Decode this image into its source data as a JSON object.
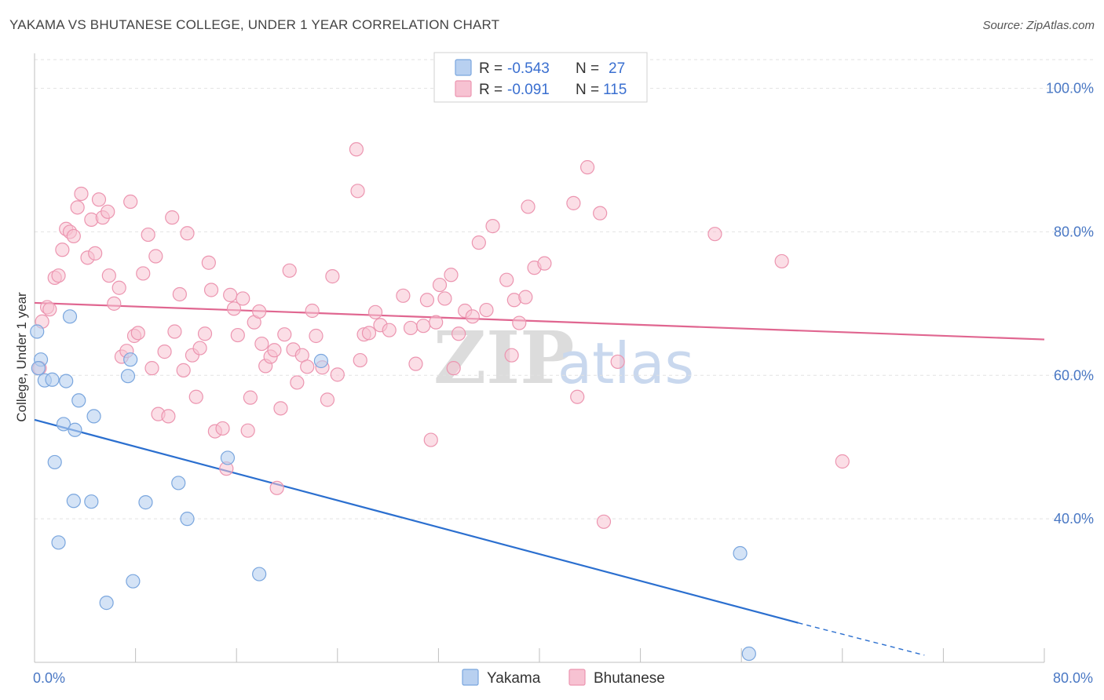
{
  "title": "YAKAMA VS BHUTANESE COLLEGE, UNDER 1 YEAR CORRELATION CHART",
  "source": "Source: ZipAtlas.com",
  "watermark": {
    "zip": "ZIP",
    "atlas": "atlas"
  },
  "colors": {
    "yakama_fill": "#b8d0f0",
    "yakama_stroke": "#7aa6de",
    "yakama_line": "#2b6fcf",
    "bhutanese_fill": "#f7c2d2",
    "bhutanese_stroke": "#ec95b0",
    "bhutanese_line": "#e06690",
    "tick_text": "#4a78c4",
    "grid": "#e2e2e2"
  },
  "legend": {
    "rows": [
      {
        "r_label": "R =",
        "r_value": "-0.543",
        "n_label": "N =",
        "n_value": "27"
      },
      {
        "r_label": "R =",
        "r_value": "-0.091",
        "n_label": "N =",
        "n_value": "115"
      }
    ]
  },
  "chart_data": {
    "type": "scatter",
    "xlabel": "",
    "ylabel": "College, Under 1 year",
    "xlim": [
      0,
      80
    ],
    "ylim": [
      20,
      104
    ],
    "x_tick_labels": [
      {
        "value": 0,
        "label": "0.0%"
      },
      {
        "value": 80,
        "label": "80.0%"
      }
    ],
    "x_minor_ticks": [
      8,
      16,
      24,
      32,
      40,
      48,
      56,
      64,
      72,
      80
    ],
    "y_ticks": [
      {
        "value": 40,
        "label": "40.0%"
      },
      {
        "value": 60,
        "label": "60.0%"
      },
      {
        "value": 80,
        "label": "80.0%"
      },
      {
        "value": 100,
        "label": "100.0%"
      }
    ],
    "grid": true,
    "legend_position": "top-center",
    "series": [
      {
        "name": "Yakama",
        "r": -0.543,
        "n": 27,
        "trend": {
          "x_start": 0,
          "y_start": 53.8,
          "x_end": 60.5,
          "y_end": 25.5,
          "dash_x_end": 70.5,
          "dash_y_end": 21.0
        },
        "points": [
          [
            0.2,
            66.1
          ],
          [
            0.5,
            62.2
          ],
          [
            0.8,
            59.3
          ],
          [
            1.4,
            59.4
          ],
          [
            2.5,
            59.2
          ],
          [
            2.8,
            68.2
          ],
          [
            3.5,
            56.5
          ],
          [
            2.3,
            53.2
          ],
          [
            3.2,
            52.4
          ],
          [
            4.7,
            54.3
          ],
          [
            1.6,
            47.9
          ],
          [
            3.1,
            42.5
          ],
          [
            4.5,
            42.4
          ],
          [
            8.8,
            42.3
          ],
          [
            11.4,
            45.0
          ],
          [
            12.1,
            40.0
          ],
          [
            1.9,
            36.7
          ],
          [
            7.8,
            31.3
          ],
          [
            5.7,
            28.3
          ],
          [
            7.6,
            62.2
          ],
          [
            7.4,
            59.9
          ],
          [
            15.3,
            48.5
          ],
          [
            17.8,
            32.3
          ],
          [
            22.7,
            62.0
          ],
          [
            55.9,
            35.2
          ],
          [
            56.6,
            21.2
          ],
          [
            0.3,
            61.0
          ]
        ]
      },
      {
        "name": "Bhutanese",
        "r": -0.091,
        "n": 115,
        "trend": {
          "x_start": 0,
          "y_start": 70.1,
          "x_end": 80,
          "y_end": 65.0
        },
        "points": [
          [
            0.4,
            61.0
          ],
          [
            0.6,
            67.5
          ],
          [
            1.0,
            69.5
          ],
          [
            1.2,
            69.2
          ],
          [
            1.6,
            73.6
          ],
          [
            1.9,
            73.9
          ],
          [
            2.2,
            77.5
          ],
          [
            2.5,
            80.4
          ],
          [
            2.8,
            80.0
          ],
          [
            3.1,
            79.4
          ],
          [
            3.4,
            83.4
          ],
          [
            3.7,
            85.3
          ],
          [
            4.2,
            76.4
          ],
          [
            4.5,
            81.7
          ],
          [
            4.8,
            77.0
          ],
          [
            5.1,
            84.5
          ],
          [
            5.4,
            82.0
          ],
          [
            5.8,
            82.8
          ],
          [
            5.9,
            73.9
          ],
          [
            6.3,
            70.0
          ],
          [
            6.7,
            72.2
          ],
          [
            6.9,
            62.6
          ],
          [
            7.3,
            63.4
          ],
          [
            7.6,
            84.2
          ],
          [
            7.9,
            65.5
          ],
          [
            8.2,
            65.9
          ],
          [
            8.6,
            74.2
          ],
          [
            9.0,
            79.6
          ],
          [
            9.3,
            61.0
          ],
          [
            9.6,
            76.6
          ],
          [
            9.8,
            54.6
          ],
          [
            10.3,
            63.3
          ],
          [
            10.6,
            54.3
          ],
          [
            10.9,
            82.0
          ],
          [
            11.1,
            66.1
          ],
          [
            11.5,
            71.3
          ],
          [
            11.8,
            60.7
          ],
          [
            12.1,
            79.8
          ],
          [
            12.5,
            62.8
          ],
          [
            12.8,
            57.0
          ],
          [
            13.1,
            63.8
          ],
          [
            13.5,
            65.8
          ],
          [
            13.8,
            75.7
          ],
          [
            14.0,
            71.9
          ],
          [
            14.3,
            52.2
          ],
          [
            14.9,
            52.6
          ],
          [
            15.2,
            47.0
          ],
          [
            15.5,
            71.2
          ],
          [
            15.8,
            69.3
          ],
          [
            16.1,
            65.6
          ],
          [
            16.5,
            70.7
          ],
          [
            16.9,
            52.3
          ],
          [
            17.1,
            56.9
          ],
          [
            17.4,
            67.4
          ],
          [
            17.8,
            68.9
          ],
          [
            18.0,
            64.4
          ],
          [
            18.3,
            61.3
          ],
          [
            18.7,
            62.6
          ],
          [
            19.0,
            63.5
          ],
          [
            19.2,
            44.3
          ],
          [
            19.5,
            55.4
          ],
          [
            19.8,
            65.7
          ],
          [
            20.2,
            74.6
          ],
          [
            20.5,
            63.6
          ],
          [
            20.8,
            59.0
          ],
          [
            21.2,
            62.8
          ],
          [
            21.6,
            61.2
          ],
          [
            22.0,
            69.0
          ],
          [
            22.3,
            65.5
          ],
          [
            22.8,
            61.1
          ],
          [
            23.2,
            56.6
          ],
          [
            23.6,
            73.8
          ],
          [
            24.0,
            60.1
          ],
          [
            25.5,
            91.5
          ],
          [
            25.6,
            85.7
          ],
          [
            25.8,
            62.1
          ],
          [
            26.1,
            65.7
          ],
          [
            26.5,
            65.9
          ],
          [
            27.0,
            68.8
          ],
          [
            27.4,
            67.0
          ],
          [
            28.1,
            66.3
          ],
          [
            29.8,
            66.6
          ],
          [
            29.2,
            71.1
          ],
          [
            30.2,
            61.6
          ],
          [
            30.8,
            66.9
          ],
          [
            31.1,
            70.5
          ],
          [
            31.4,
            51.0
          ],
          [
            31.8,
            67.4
          ],
          [
            32.1,
            72.6
          ],
          [
            32.5,
            70.7
          ],
          [
            33.0,
            74.0
          ],
          [
            33.2,
            61.0
          ],
          [
            33.6,
            65.8
          ],
          [
            34.1,
            69.0
          ],
          [
            34.7,
            68.2
          ],
          [
            35.2,
            78.5
          ],
          [
            35.8,
            69.1
          ],
          [
            36.3,
            80.8
          ],
          [
            37.4,
            73.3
          ],
          [
            37.8,
            62.8
          ],
          [
            38.0,
            70.5
          ],
          [
            38.4,
            67.3
          ],
          [
            38.9,
            70.9
          ],
          [
            39.1,
            83.5
          ],
          [
            39.6,
            75.0
          ],
          [
            40.4,
            75.6
          ],
          [
            42.7,
            84.0
          ],
          [
            43.0,
            57.0
          ],
          [
            43.8,
            89.0
          ],
          [
            44.8,
            82.6
          ],
          [
            45.1,
            39.6
          ],
          [
            46.2,
            61.9
          ],
          [
            53.9,
            79.7
          ],
          [
            59.2,
            75.9
          ],
          [
            64.0,
            48.0
          ]
        ]
      }
    ]
  },
  "bottom_legend": [
    {
      "label": "Yakama"
    },
    {
      "label": "Bhutanese"
    }
  ]
}
